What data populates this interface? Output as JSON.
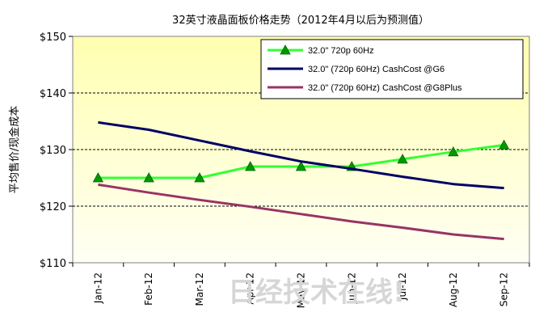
{
  "chart_data": {
    "type": "line",
    "title": "32英寸液晶面板价格走势（2012年4月以后为预测值）",
    "ylabel": "平均售价/现金成本",
    "xlabel": "",
    "categories": [
      "Jan-12",
      "Feb-12",
      "Mar-12",
      "Apr-12",
      "May-12",
      "Jun-12",
      "Jul-12",
      "Aug-12",
      "Sep-12"
    ],
    "ylim": [
      110,
      150
    ],
    "yticks": [
      "$110",
      "$120",
      "$130",
      "$140",
      "$150"
    ],
    "grid": "horizontal-dashed",
    "legend_position": "top-right",
    "background": "yellow-gradient",
    "series": [
      {
        "name": "32.0\" 720p 60Hz",
        "color": "#33ff33",
        "marker": "triangle",
        "values": [
          125,
          125,
          125,
          127,
          127,
          127,
          128.3,
          129.6,
          130.8
        ]
      },
      {
        "name": "32.0\" (720p 60Hz) CashCost @G6",
        "color": "#000066",
        "marker": "none",
        "values": [
          134.8,
          133.5,
          131.6,
          129.7,
          127.9,
          126.6,
          125.2,
          123.9,
          123.2
        ]
      },
      {
        "name": "32.0\" (720p 60Hz) CashCost @G8Plus",
        "color": "#993366",
        "marker": "none",
        "values": [
          123.8,
          122.4,
          121.1,
          119.9,
          118.6,
          117.3,
          116.2,
          115,
          114.2
        ]
      }
    ]
  },
  "watermark": "日经技术在线!"
}
